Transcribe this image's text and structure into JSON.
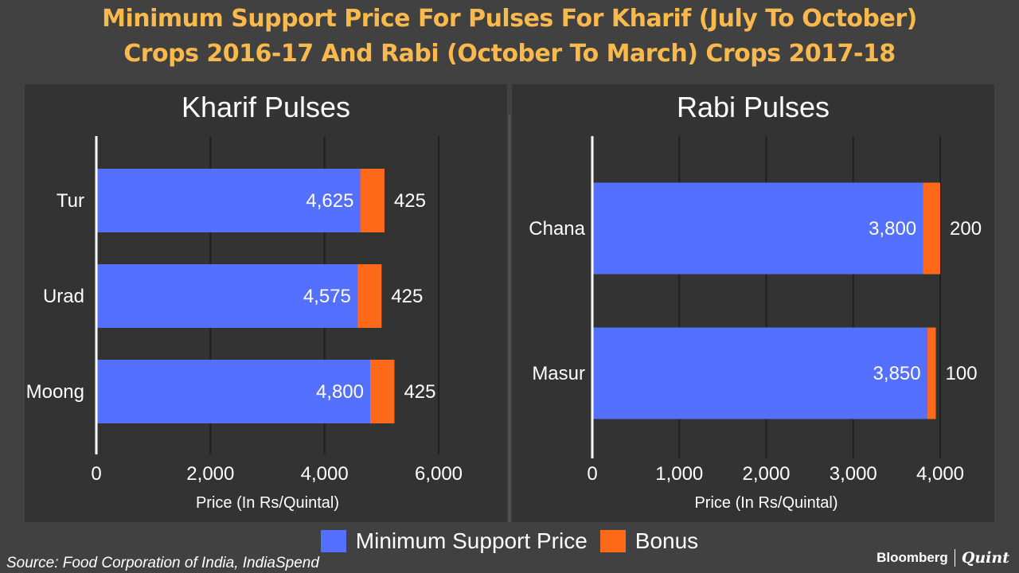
{
  "title_line1": "Minimum Support Price For Pulses For Kharif (July To October)",
  "title_line2": "Crops 2016-17 And Rabi (October To March) Crops 2017-18",
  "legend": {
    "msp_label": "Minimum Support Price",
    "bonus_label": "Bonus",
    "msp_color": "#5470FF",
    "bonus_color": "#FF6A1A"
  },
  "source": "Source: Food Corporation of India, IndiaSpend",
  "logo": {
    "brand": "Bloomberg",
    "sub": "Quint"
  },
  "chart_data": [
    {
      "type": "bar",
      "orientation": "horizontal",
      "stacked": true,
      "title": "Kharif Pulses",
      "xlabel": "Price (In Rs/Quintal)",
      "xlim": [
        0,
        6000
      ],
      "xticks": [
        0,
        2000,
        4000,
        6000
      ],
      "xtick_labels": [
        "0",
        "2,000",
        "4,000",
        "6,000"
      ],
      "grid": true,
      "categories": [
        "Tur",
        "Urad",
        "Moong"
      ],
      "series": [
        {
          "name": "Minimum Support Price",
          "values": [
            4625,
            4575,
            4800
          ],
          "labels": [
            "4,625",
            "4,575",
            "4,800"
          ]
        },
        {
          "name": "Bonus",
          "values": [
            425,
            425,
            425
          ],
          "labels": [
            "425",
            "425",
            "425"
          ]
        }
      ]
    },
    {
      "type": "bar",
      "orientation": "horizontal",
      "stacked": true,
      "title": "Rabi Pulses",
      "xlabel": "Price (In Rs/Quintal)",
      "xlim": [
        0,
        4000
      ],
      "xticks": [
        0,
        1000,
        2000,
        3000,
        4000
      ],
      "xtick_labels": [
        "0",
        "1,000",
        "2,000",
        "3,000",
        "4,000"
      ],
      "grid": true,
      "categories": [
        "Chana",
        "Masur"
      ],
      "series": [
        {
          "name": "Minimum Support Price",
          "values": [
            3800,
            3850
          ],
          "labels": [
            "3,800",
            "3,850"
          ]
        },
        {
          "name": "Bonus",
          "values": [
            200,
            100
          ],
          "labels": [
            "200",
            "100"
          ]
        }
      ]
    }
  ]
}
